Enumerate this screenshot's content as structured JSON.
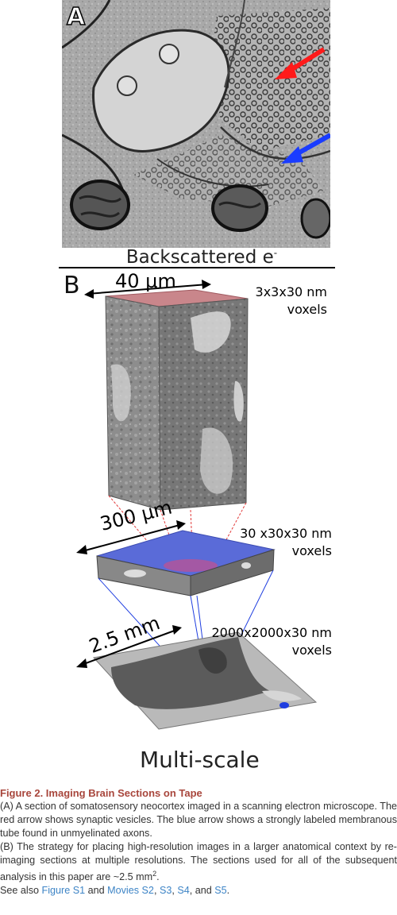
{
  "panel_a": {
    "letter": "A",
    "label_main": "Backscattered e",
    "label_sup": "-"
  },
  "panel_b": {
    "letter": "B",
    "level1": {
      "scale": "40 µm",
      "voxel_line1": "3x3x30 nm",
      "voxel_line2": "voxels"
    },
    "level2": {
      "scale": "300 µm",
      "voxel_line1": "30 x30x30 nm",
      "voxel_line2": "voxels"
    },
    "level3": {
      "scale": "2.5 mm",
      "voxel_line1": "2000x2000x30 nm",
      "voxel_line2": "voxels"
    },
    "bottom_label": "Multi-scale"
  },
  "colors": {
    "title": "#a8463c",
    "link": "#3d84c6",
    "arrow_red": "#ff1a1a",
    "arrow_blue": "#1a3cff"
  },
  "caption": {
    "title": "Figure 2. Imaging Brain Sections on Tape",
    "para_a": "(A) A section of somatosensory neocortex imaged in a scanning electron microscope. The red arrow shows synaptic vesicles. The blue arrow shows a strongly labeled membranous tube found in unmyelinated axons.",
    "para_b_main": "(B) The strategy for placing high-resolution images in a larger anatomical context by re-imaging sections at multiple resolutions. The sections used for all of the subsequent analysis in this paper are ~2.5 mm",
    "para_b_sup": "2",
    "para_b_end": ".",
    "see_also_prefix": "See also ",
    "link1": "Figure S1",
    "and1": " and ",
    "link2": "Movies S2",
    "sep1": ", ",
    "link3": "S3",
    "sep2": ", ",
    "link4": "S4",
    "and2": ", and ",
    "link5": "S5",
    "end": "."
  }
}
